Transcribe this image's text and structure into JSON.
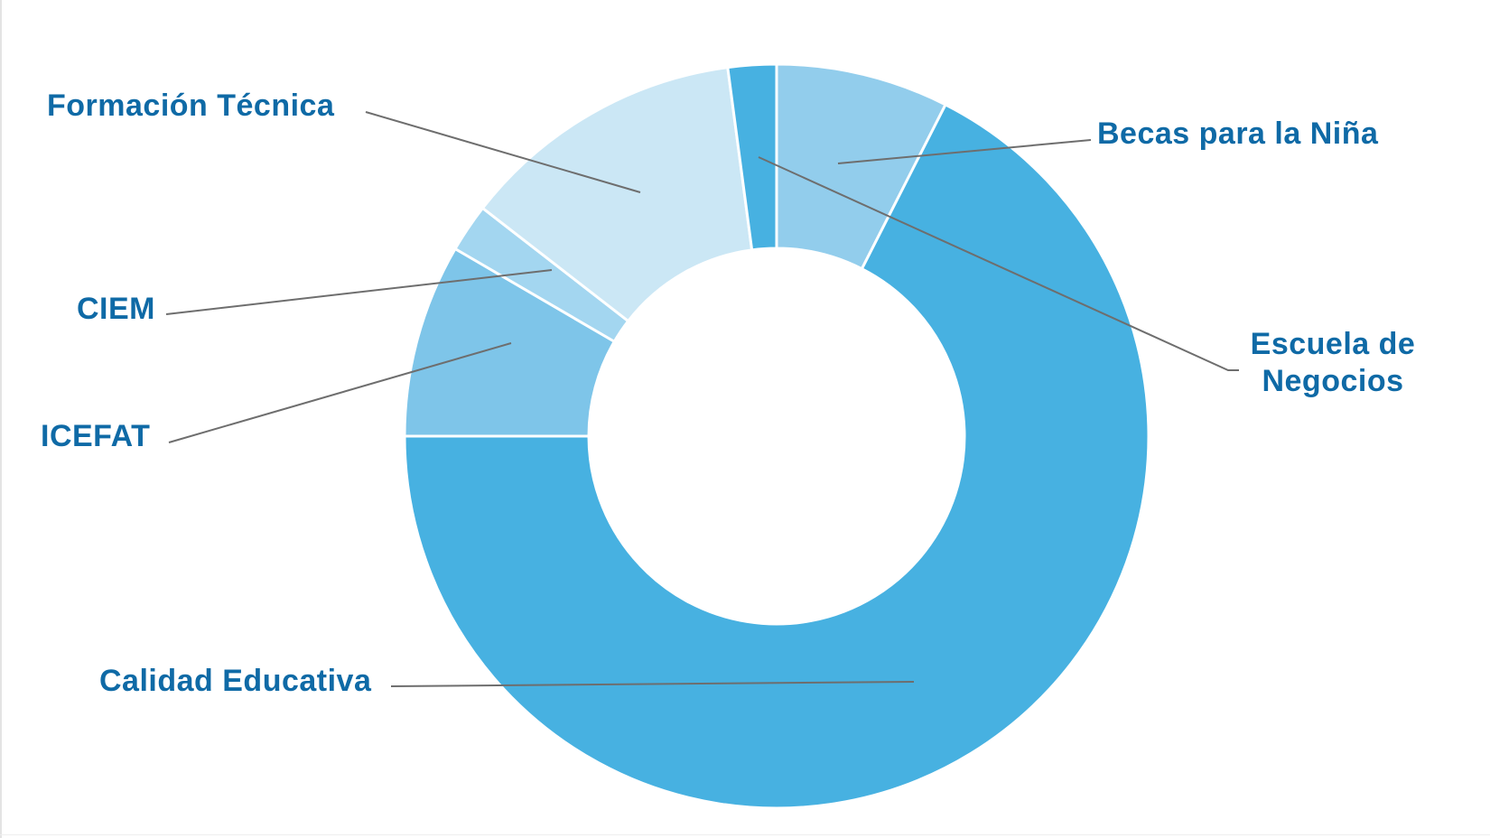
{
  "chart_data": {
    "type": "pie",
    "variant": "donut",
    "title": "",
    "start_angle": "top",
    "direction": "clockwise",
    "grid": false,
    "legend": "none (leader-line labels)",
    "label_color": "#0f6aa6",
    "leader_color": "#6e6e6e",
    "separator_color": "#ffffff",
    "slices": [
      {
        "label": "Becas para la Niña",
        "value": 7.5,
        "color": "#92cdec"
      },
      {
        "label": "Calidad Educativa",
        "value": 67.5,
        "color": "#47b1e1"
      },
      {
        "label": "ICEFAT",
        "value": 8.4,
        "color": "#7ec5e9"
      },
      {
        "label": "CIEM",
        "value": 2.1,
        "color": "#a3d6f0"
      },
      {
        "label": "Formación Técnica",
        "value": 12.4,
        "color": "#cbe7f5"
      },
      {
        "label": "Escuela de Negocios",
        "value": 2.1,
        "color": "#47b1e1"
      }
    ]
  }
}
